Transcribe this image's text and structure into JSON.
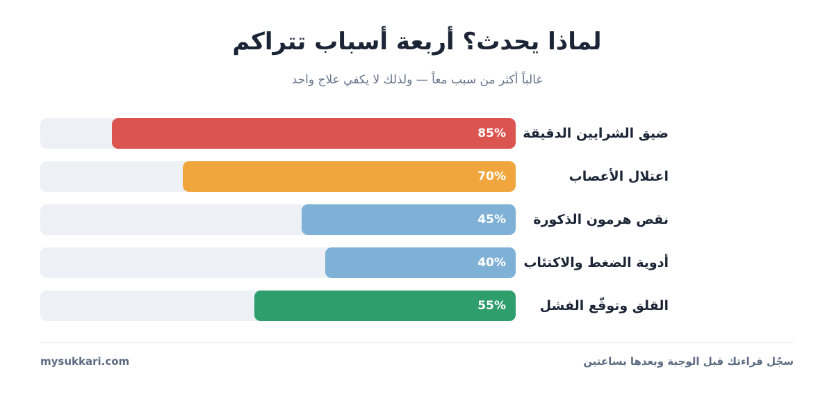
{
  "footer": {
    "brand": "mysukkari.com",
    "note": "سجّل قراءتك قبل الوجبة وبعدها بساعتين"
  },
  "chart_data": {
    "type": "bar",
    "orientation": "horizontal",
    "title": "لماذا يحدث؟ أربعة أسباب تتراكم",
    "subtitle": "غالباً أكثر من سبب معاً — ولذلك لا يكفي علاج واحد",
    "categories": [
      "ضيق الشرايين الدقيقة",
      "اعتلال الأعصاب",
      "نقص هرمون الذكورة",
      "أدوية الضغط والاكتئاب",
      "القلق وتوقّع الفشل"
    ],
    "values": [
      85,
      70,
      45,
      40,
      55
    ],
    "value_labels": [
      "85%",
      "70%",
      "45%",
      "40%",
      "55%"
    ],
    "colors": [
      "#dc5450",
      "#f0a63d",
      "#7fb1d6",
      "#7fb1d6",
      "#2e9e6c"
    ],
    "track_color": "#edf0f4",
    "xlim": [
      0,
      100
    ],
    "grid": false
  }
}
